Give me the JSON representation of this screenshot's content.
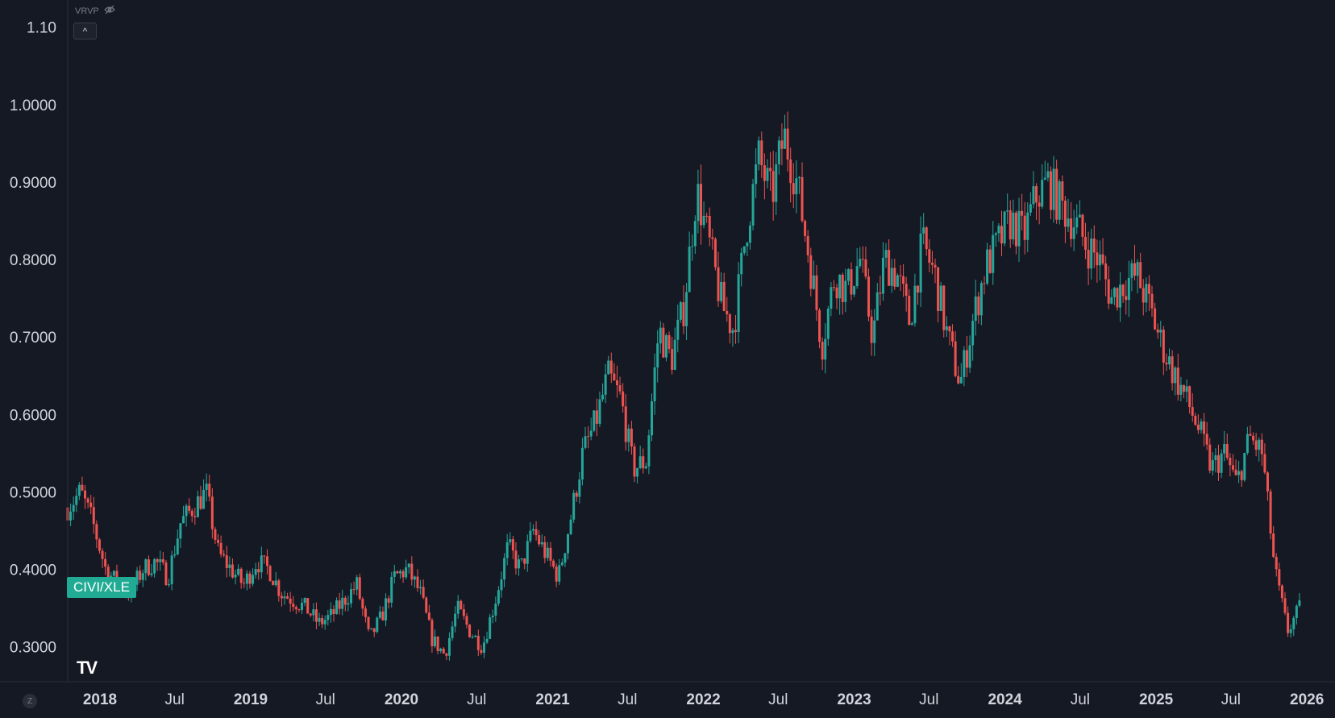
{
  "indicator": {
    "label": "VRVP",
    "icon": "eye-hidden-icon"
  },
  "collapse_button": {
    "icon": "chevron-up-icon",
    "glyph": "^"
  },
  "symbol": "CIVI/XLE",
  "logo": "TV",
  "z_button": "Z",
  "colors": {
    "background": "#151924",
    "up": "#26a69a",
    "down": "#ef5350",
    "tag": "#22ab94",
    "text": "#d1d4dc"
  },
  "chart_data": {
    "type": "candlestick",
    "title": "",
    "symbol": "CIVI/XLE",
    "interval": "weekly",
    "y_tick_labels": [
      "1.10",
      "1.0000",
      "0.9000",
      "0.8000",
      "0.7000",
      "0.6000",
      "0.5000",
      "0.4000",
      "0.3000"
    ],
    "y_ticks": [
      1.1,
      1.0,
      0.9,
      0.8,
      0.7,
      0.6,
      0.5,
      0.4,
      0.3
    ],
    "ylim": [
      0.255,
      1.135
    ],
    "x_tick_labels": [
      "2018",
      "Jul",
      "2019",
      "Jul",
      "2020",
      "Jul",
      "2021",
      "Jul",
      "2022",
      "Jul",
      "2023",
      "Jul",
      "2024",
      "Jul",
      "2025",
      "Jul",
      "2026"
    ],
    "x_ticks": [
      "2018-01",
      "2018-07",
      "2019-01",
      "2019-07",
      "2020-01",
      "2020-07",
      "2021-01",
      "2021-07",
      "2022-01",
      "2022-07",
      "2023-01",
      "2023-07",
      "2024-01",
      "2024-07",
      "2025-01",
      "2025-07",
      "2026-01"
    ],
    "xlim": [
      "2017-10-15",
      "2026-03-10"
    ],
    "grid": false,
    "legend": "none",
    "close_series": [
      [
        "2017-10",
        0.48
      ],
      [
        "2017-11",
        0.5
      ],
      [
        "2017-12",
        0.46
      ],
      [
        "2018-01",
        0.4
      ],
      [
        "2018-02",
        0.38
      ],
      [
        "2018-03",
        0.37
      ],
      [
        "2018-04",
        0.4
      ],
      [
        "2018-05",
        0.41
      ],
      [
        "2018-06",
        0.39
      ],
      [
        "2018-07",
        0.46
      ],
      [
        "2018-08",
        0.48
      ],
      [
        "2018-09",
        0.5
      ],
      [
        "2018-10",
        0.42
      ],
      [
        "2018-11",
        0.4
      ],
      [
        "2018-12",
        0.38
      ],
      [
        "2019-01",
        0.41
      ],
      [
        "2019-02",
        0.4
      ],
      [
        "2019-03",
        0.37
      ],
      [
        "2019-04",
        0.36
      ],
      [
        "2019-05",
        0.35
      ],
      [
        "2019-06",
        0.33
      ],
      [
        "2019-07",
        0.34
      ],
      [
        "2019-08",
        0.36
      ],
      [
        "2019-09",
        0.38
      ],
      [
        "2019-10",
        0.31
      ],
      [
        "2019-11",
        0.34
      ],
      [
        "2019-12",
        0.39
      ],
      [
        "2020-01",
        0.4
      ],
      [
        "2020-02",
        0.37
      ],
      [
        "2020-03",
        0.31
      ],
      [
        "2020-04",
        0.29
      ],
      [
        "2020-05",
        0.35
      ],
      [
        "2020-06",
        0.32
      ],
      [
        "2020-07",
        0.3
      ],
      [
        "2020-08",
        0.36
      ],
      [
        "2020-09",
        0.43
      ],
      [
        "2020-10",
        0.4
      ],
      [
        "2020-11",
        0.45
      ],
      [
        "2020-12",
        0.42
      ],
      [
        "2021-01",
        0.39
      ],
      [
        "2021-02",
        0.47
      ],
      [
        "2021-03",
        0.55
      ],
      [
        "2021-04",
        0.59
      ],
      [
        "2021-05",
        0.65
      ],
      [
        "2021-06",
        0.62
      ],
      [
        "2021-07",
        0.53
      ],
      [
        "2021-08",
        0.54
      ],
      [
        "2021-09",
        0.71
      ],
      [
        "2021-10",
        0.67
      ],
      [
        "2021-11",
        0.74
      ],
      [
        "2021-12",
        0.89
      ],
      [
        "2022-01",
        0.82
      ],
      [
        "2022-02",
        0.74
      ],
      [
        "2022-03",
        0.71
      ],
      [
        "2022-04",
        0.84
      ],
      [
        "2022-05",
        0.93
      ],
      [
        "2022-06",
        0.88
      ],
      [
        "2022-07",
        0.96
      ],
      [
        "2022-08",
        0.9
      ],
      [
        "2022-09",
        0.8
      ],
      [
        "2022-10",
        0.69
      ],
      [
        "2022-11",
        0.78
      ],
      [
        "2022-12",
        0.76
      ],
      [
        "2023-01",
        0.8
      ],
      [
        "2023-02",
        0.7
      ],
      [
        "2023-03",
        0.8
      ],
      [
        "2023-04",
        0.78
      ],
      [
        "2023-05",
        0.72
      ],
      [
        "2023-06",
        0.82
      ],
      [
        "2023-07",
        0.78
      ],
      [
        "2023-08",
        0.7
      ],
      [
        "2023-09",
        0.64
      ],
      [
        "2023-10",
        0.72
      ],
      [
        "2023-11",
        0.79
      ],
      [
        "2023-12",
        0.82
      ],
      [
        "2024-01",
        0.85
      ],
      [
        "2024-02",
        0.83
      ],
      [
        "2024-03",
        0.88
      ],
      [
        "2024-04",
        0.9
      ],
      [
        "2024-05",
        0.87
      ],
      [
        "2024-06",
        0.85
      ],
      [
        "2024-07",
        0.82
      ],
      [
        "2024-08",
        0.8
      ],
      [
        "2024-09",
        0.75
      ],
      [
        "2024-10",
        0.77
      ],
      [
        "2024-11",
        0.78
      ],
      [
        "2024-12",
        0.74
      ],
      [
        "2025-01",
        0.69
      ],
      [
        "2025-02",
        0.65
      ],
      [
        "2025-03",
        0.62
      ],
      [
        "2025-04",
        0.58
      ],
      [
        "2025-05",
        0.53
      ],
      [
        "2025-06",
        0.55
      ],
      [
        "2025-07",
        0.51
      ],
      [
        "2025-08",
        0.57
      ],
      [
        "2025-09",
        0.55
      ],
      [
        "2025-10",
        0.4
      ],
      [
        "2025-11",
        0.32
      ],
      [
        "2025-12",
        0.35
      ]
    ]
  }
}
